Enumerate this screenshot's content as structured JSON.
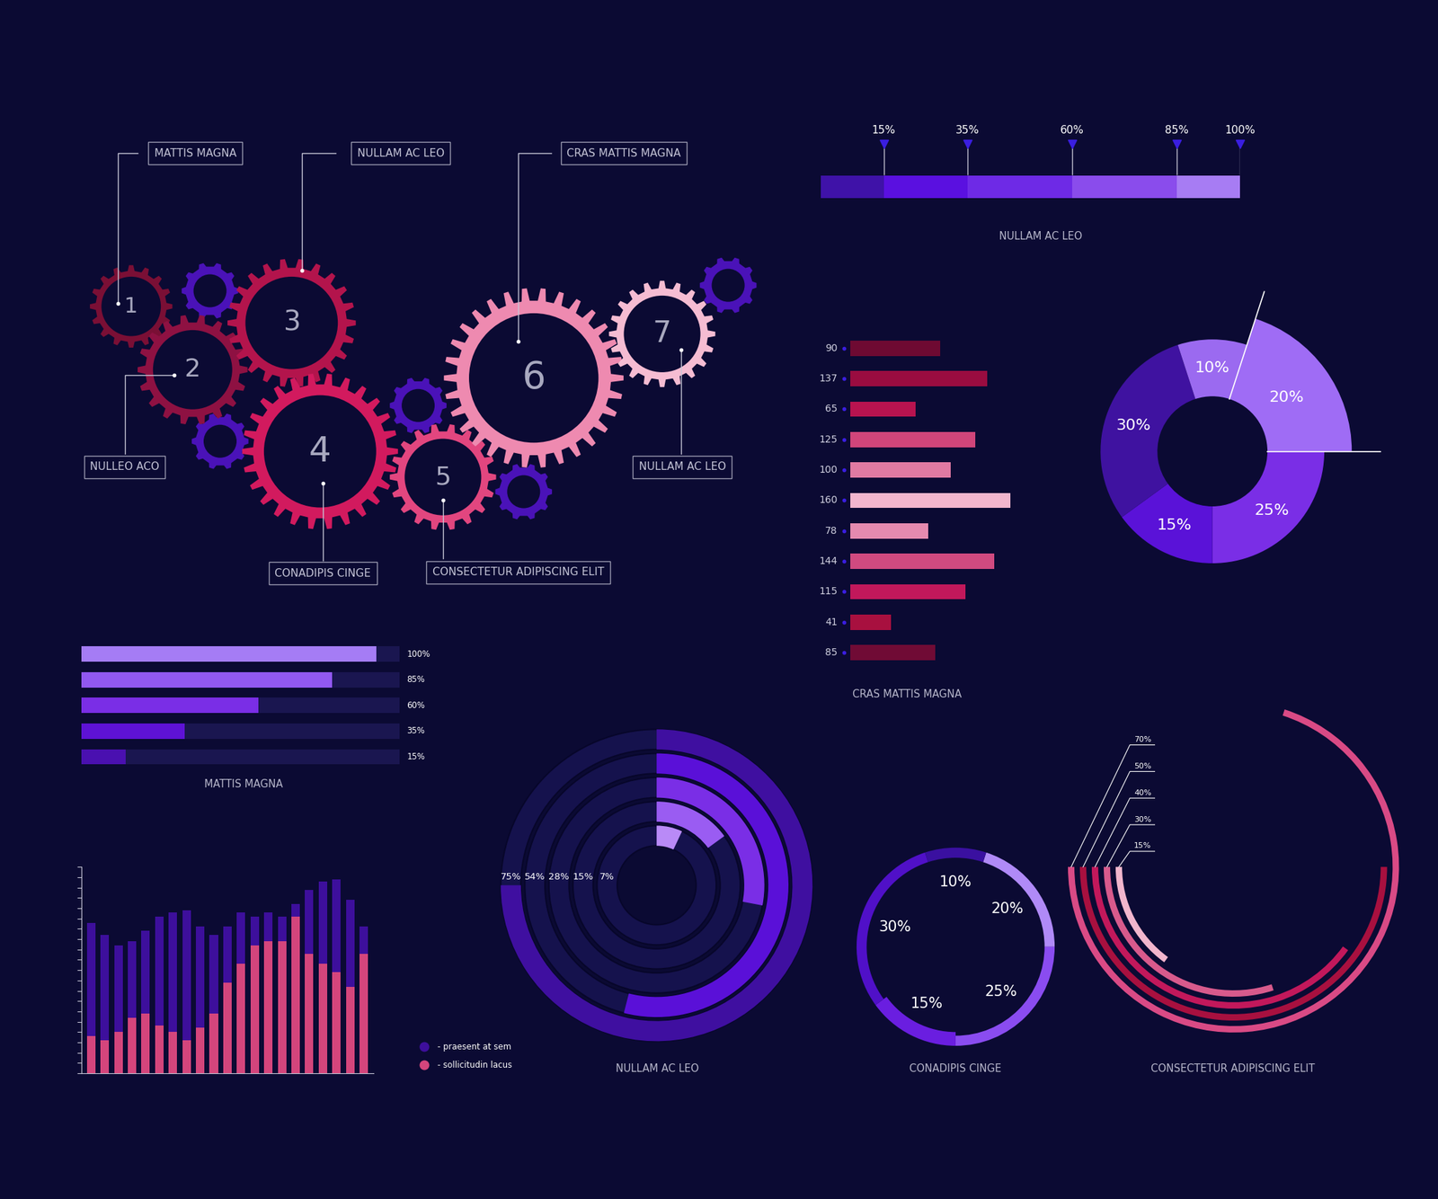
{
  "gears": [
    {
      "number": 1,
      "label": "MATTIS MAGNA"
    },
    {
      "number": 2,
      "label": "NULLEO ACO"
    },
    {
      "number": 3,
      "label": "NULLAM AC LEO"
    },
    {
      "number": 4,
      "label": "CONADIPIS CINGE"
    },
    {
      "number": 5,
      "label": "CONSECTETUR ADIPISCING ELIT"
    },
    {
      "number": 6,
      "label": "CRAS MATTIS MAGNA"
    },
    {
      "number": 7,
      "label": "NULLAM AC LEO"
    }
  ],
  "chart_data": [
    {
      "type": "milestones",
      "title": "NULLAM AC LEO",
      "values": [
        15,
        35,
        60,
        85,
        100
      ],
      "value_labels": [
        "15%",
        "35%",
        "60%",
        "85%",
        "100%"
      ],
      "colors": [
        "#3f12a8",
        "#5a10e0",
        "#6e2ae6",
        "#8a4cec",
        "#a77cf3"
      ],
      "xlim": [
        0,
        100
      ],
      "tick_labels": false
    },
    {
      "type": "bar",
      "orientation": "horizontal",
      "title": "CRAS MATTIS MAGNA",
      "values": [
        90,
        137,
        65,
        125,
        100,
        160,
        78,
        144,
        115,
        41,
        85
      ],
      "colors": [
        "#6e0a32",
        "#9a0c40",
        "#b8134f",
        "#d0457a",
        "#e07aa2",
        "#f2b6cd",
        "#e58aaf",
        "#d04a80",
        "#c2185b",
        "#a8103f",
        "#700b35"
      ],
      "xlim": [
        0,
        160
      ],
      "data_labels": true,
      "tick_labels": false
    },
    {
      "type": "donut",
      "values": [
        20,
        25,
        15,
        30,
        10
      ],
      "value_labels": [
        "20%",
        "25%",
        "15%",
        "30%",
        "10%"
      ],
      "colors": [
        "#9f6cf5",
        "#7a2ee6",
        "#5a12d8",
        "#3f12a0",
        "#9b6af0"
      ]
    },
    {
      "type": "progress",
      "title": "MATTIS MAGNA",
      "values": [
        100,
        85,
        60,
        35,
        15
      ],
      "value_labels": [
        "100%",
        "85%",
        "60%",
        "35%",
        "15%"
      ],
      "colors": [
        "#a57cf5",
        "#9158f0",
        "#7a2ee6",
        "#5e12d6",
        "#4a10b0"
      ],
      "xlim": [
        0,
        100
      ],
      "tick_labels": false
    },
    {
      "type": "bar",
      "categories": [
        null,
        null,
        null,
        null,
        null,
        null,
        null,
        null,
        null,
        null,
        null,
        null,
        null,
        null,
        null,
        null,
        null,
        null,
        null,
        null,
        null
      ],
      "series": [
        {
          "name": "- praesent at sem",
          "color": "#3d0f9c",
          "values": [
            73,
            67,
            62,
            64,
            69,
            76,
            78,
            79,
            71,
            67,
            71,
            78,
            76,
            78,
            76,
            82,
            89,
            93,
            94,
            84,
            71
          ]
        },
        {
          "name": "- sollicitudin lacus",
          "color": "#d4457c",
          "values": [
            18,
            16,
            20,
            27,
            29,
            23,
            20,
            16,
            22,
            29,
            44,
            53,
            62,
            64,
            64,
            76,
            58,
            53,
            49,
            42,
            58
          ]
        }
      ],
      "ylim": [
        0,
        100
      ],
      "yticks": [
        0,
        5,
        10,
        15,
        20,
        25,
        30,
        35,
        40,
        45,
        50,
        55,
        60,
        65,
        70,
        75,
        80,
        85,
        90,
        95,
        100
      ],
      "tick_labels": false,
      "legend": "right"
    },
    {
      "type": "radial_bar",
      "title": "NULLAM AC LEO",
      "values": [
        75,
        54,
        28,
        15,
        7
      ],
      "value_labels": [
        "75%",
        "54%",
        "28%",
        "15%",
        "7%"
      ],
      "colors": [
        "#3f0fa0",
        "#5a10d8",
        "#7a2ee6",
        "#9a5cf2",
        "#b98af7"
      ]
    },
    {
      "type": "ring",
      "title": "CONADIPIS CINGE",
      "values": [
        20,
        25,
        15,
        30,
        10
      ],
      "value_labels": [
        "20%",
        "25%",
        "15%",
        "30%",
        "10%"
      ],
      "colors": [
        "#b08af7",
        "#8a4cf0",
        "#6a1ee0",
        "#5010c8",
        "#3a10a0"
      ]
    },
    {
      "type": "arc",
      "title": "CONSECTETUR ADIPISCING ELIT",
      "values": [
        70,
        50,
        40,
        30,
        15
      ],
      "value_labels": [
        "70%",
        "50%",
        "40%",
        "30%",
        "15%"
      ],
      "colors": [
        "#d94a85",
        "#a8103f",
        "#c2185b",
        "#d85a8c",
        "#f2b6cd"
      ]
    }
  ]
}
